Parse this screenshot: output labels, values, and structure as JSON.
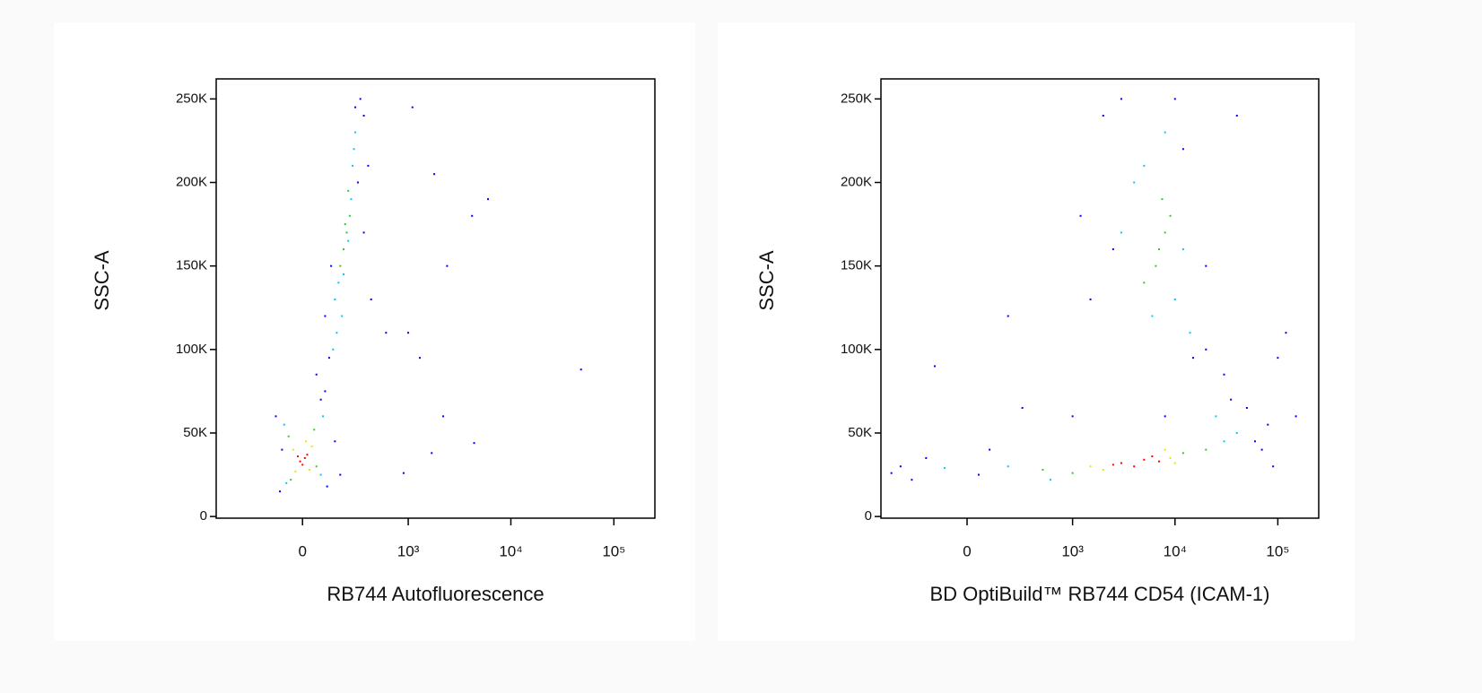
{
  "chart_data": [
    {
      "type": "scatter",
      "x_label": "RB744 Autofluorescence",
      "y_label": "SSC-A",
      "xscale": "biexponential",
      "xlim": [
        -640,
        250000
      ],
      "ylim": [
        -1000,
        262000
      ],
      "xticks": [
        0,
        {
          "value": 1000,
          "label": "10³"
        },
        {
          "value": 10000,
          "label": "10⁴"
        },
        {
          "value": 100000,
          "label": "10⁵"
        }
      ],
      "yticks": [
        0,
        {
          "value": 50000,
          "label": "50K"
        },
        {
          "value": 100000,
          "label": "100K"
        },
        {
          "value": 150000,
          "label": "150K"
        },
        {
          "value": 200000,
          "label": "200K"
        },
        {
          "value": 250000,
          "label": "250K"
        }
      ],
      "series": [
        {
          "color": "#0000ff",
          "x": [
            -100,
            110,
            -120,
            100,
            60,
            120,
            80,
            280,
            320,
            350,
            300,
            130,
            390,
            100,
            350,
            420,
            -90,
            150,
            180,
            600,
            1100,
            1800,
            2400,
            4200,
            6000,
            48000,
            2200,
            4400,
            1700,
            900,
            1000,
            1300
          ],
          "y": [
            15000,
            18000,
            60000,
            75000,
            85000,
            95000,
            70000,
            245000,
            250000,
            240000,
            200000,
            150000,
            210000,
            120000,
            170000,
            130000,
            40000,
            45000,
            25000,
            110000,
            245000,
            205000,
            150000,
            180000,
            190000,
            88000,
            60000,
            44000,
            38000,
            26000,
            110000,
            95000
          ]
        },
        {
          "color": "#00c8ff",
          "x": [
            -80,
            80,
            90,
            -70,
            150,
            170,
            260,
            270,
            190,
            250,
            200,
            280,
            160,
            140,
            230
          ],
          "y": [
            55000,
            25000,
            60000,
            20000,
            130000,
            140000,
            210000,
            220000,
            120000,
            190000,
            145000,
            230000,
            110000,
            100000,
            165000
          ]
        },
        {
          "color": "#32c832",
          "x": [
            -60,
            60,
            -50,
            50,
            220,
            200,
            240,
            180,
            230,
            210
          ],
          "y": [
            48000,
            30000,
            22000,
            52000,
            170000,
            160000,
            180000,
            150000,
            195000,
            175000
          ]
        },
        {
          "color": "#e6e600",
          "x": [
            -40,
            30,
            40,
            -30,
            15
          ],
          "y": [
            40000,
            28000,
            42000,
            27000,
            45000
          ]
        },
        {
          "color": "#ff0000",
          "x": [
            -10,
            10,
            0,
            20,
            -20
          ],
          "y": [
            33000,
            35000,
            31000,
            37000,
            36000
          ]
        }
      ]
    },
    {
      "type": "scatter",
      "x_label": "BD OptiBuild™ RB744 CD54 (ICAM-1)",
      "y_label": "SSC-A",
      "xscale": "biexponential",
      "xlim": [
        -640,
        250000
      ],
      "ylim": [
        -1000,
        262000
      ],
      "xticks": [
        0,
        {
          "value": 1000,
          "label": "10³"
        },
        {
          "value": 10000,
          "label": "10⁴"
        },
        {
          "value": 100000,
          "label": "10⁵"
        }
      ],
      "yticks": [
        0,
        {
          "value": 50000,
          "label": "50K"
        },
        {
          "value": 100000,
          "label": "100K"
        },
        {
          "value": 150000,
          "label": "150K"
        },
        {
          "value": 200000,
          "label": "200K"
        },
        {
          "value": 250000,
          "label": "250K"
        }
      ],
      "series": [
        {
          "color": "#0000ff",
          "x": [
            -500,
            -400,
            -300,
            -200,
            50,
            100,
            60000,
            80000,
            70000,
            50000,
            30000,
            20000,
            15000,
            2000,
            3000,
            10000,
            12000,
            2500,
            1500,
            1200,
            100000,
            150000,
            120000,
            200,
            300,
            -150,
            1000,
            40000,
            20000,
            35000,
            8000,
            90000
          ],
          "y": [
            26000,
            30000,
            22000,
            35000,
            25000,
            40000,
            45000,
            55000,
            40000,
            65000,
            85000,
            100000,
            95000,
            240000,
            250000,
            250000,
            220000,
            160000,
            130000,
            180000,
            95000,
            60000,
            110000,
            120000,
            65000,
            90000,
            60000,
            240000,
            150000,
            70000,
            60000,
            30000
          ]
        },
        {
          "color": "#00c8ff",
          "x": [
            200,
            30000,
            -100,
            40000,
            4000,
            10000,
            6000,
            12000,
            5000,
            8000,
            3000,
            14000,
            25000,
            600
          ],
          "y": [
            30000,
            45000,
            29000,
            50000,
            200000,
            130000,
            120000,
            160000,
            210000,
            230000,
            170000,
            110000,
            60000,
            22000
          ]
        },
        {
          "color": "#32c832",
          "x": [
            500,
            12000,
            1000,
            20000,
            7000,
            8000,
            6500,
            9000,
            5000,
            7500
          ],
          "y": [
            28000,
            38000,
            26000,
            40000,
            160000,
            170000,
            150000,
            180000,
            140000,
            190000
          ]
        },
        {
          "color": "#e6e600",
          "x": [
            1500,
            9000,
            8000,
            2000,
            10000
          ],
          "y": [
            30000,
            35000,
            40000,
            28000,
            32000
          ]
        },
        {
          "color": "#ff0000",
          "x": [
            3000,
            5000,
            7000,
            4000,
            6000,
            2500
          ],
          "y": [
            32000,
            34000,
            33000,
            30000,
            36000,
            31000
          ]
        }
      ]
    }
  ]
}
